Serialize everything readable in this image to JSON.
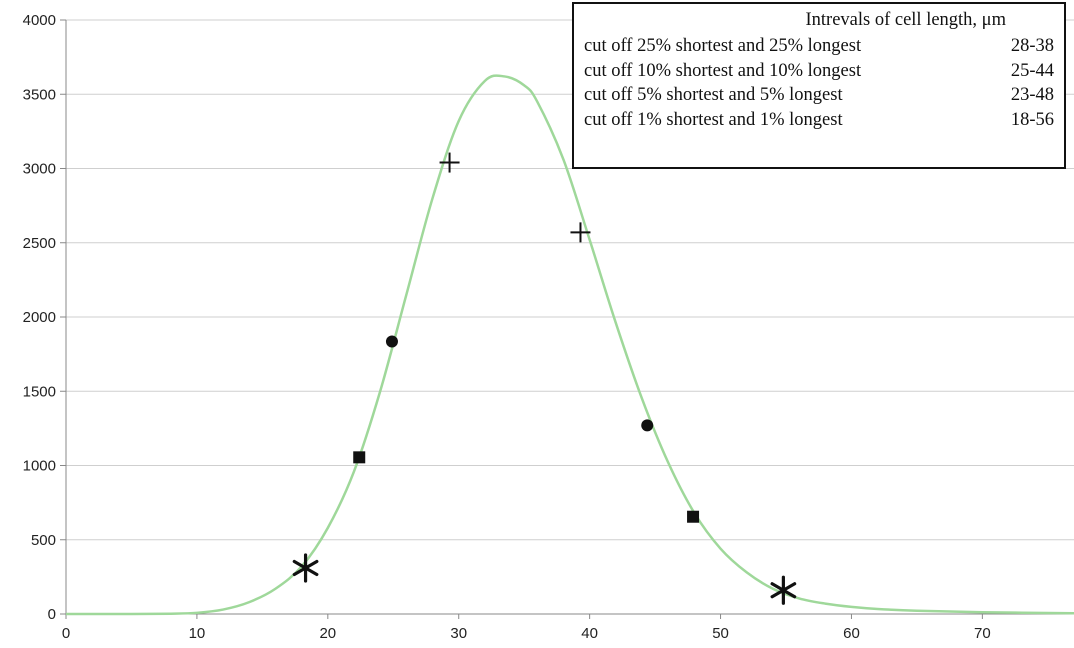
{
  "chart_data": {
    "type": "line",
    "title": "",
    "xlabel": "",
    "ylabel": "",
    "xlim": [
      0,
      77
    ],
    "ylim": [
      0,
      4000
    ],
    "x_ticks": [
      0,
      10,
      20,
      30,
      40,
      50,
      60,
      70
    ],
    "y_ticks": [
      0,
      500,
      1000,
      1500,
      2000,
      2500,
      3000,
      3500,
      4000
    ],
    "grid": "horizontal",
    "curve_color": "#9fd89a",
    "curve": {
      "x": [
        0,
        5,
        8,
        10,
        12,
        14,
        16,
        18,
        20,
        22,
        24,
        26,
        28,
        30,
        32,
        33.5,
        35,
        36,
        38,
        40,
        42,
        44,
        46,
        48,
        50,
        52,
        54,
        56,
        58,
        60,
        62,
        65,
        70,
        77
      ],
      "y": [
        0,
        0,
        2,
        8,
        30,
        80,
        170,
        320,
        580,
        960,
        1500,
        2150,
        2800,
        3320,
        3590,
        3620,
        3560,
        3450,
        3060,
        2520,
        1960,
        1450,
        1020,
        680,
        440,
        280,
        170,
        105,
        70,
        48,
        34,
        22,
        12,
        5
      ]
    },
    "markers": [
      {
        "symbol": "asterisk",
        "x": 18.3,
        "y": 310
      },
      {
        "symbol": "square",
        "x": 22.4,
        "y": 1055
      },
      {
        "symbol": "circle",
        "x": 24.9,
        "y": 1835
      },
      {
        "symbol": "plus",
        "x": 29.3,
        "y": 3040
      },
      {
        "symbol": "plus",
        "x": 39.3,
        "y": 2570
      },
      {
        "symbol": "circle",
        "x": 44.4,
        "y": 1270
      },
      {
        "symbol": "square",
        "x": 47.9,
        "y": 655
      },
      {
        "symbol": "asterisk",
        "x": 54.8,
        "y": 160
      }
    ],
    "legend": {
      "placement": "top-right",
      "header": "Intrevals of cell length, μm",
      "rows": [
        {
          "label": "cut off 25% shortest and 25% longest",
          "range": "28-38"
        },
        {
          "label": "cut off 10% shortest and 10% longest",
          "range": "25-44"
        },
        {
          "label": "cut off 5% shortest and 5% longest",
          "range": "23-48"
        },
        {
          "label": "cut off 1% shortest and 1% longest",
          "range": "18-56"
        }
      ]
    }
  }
}
